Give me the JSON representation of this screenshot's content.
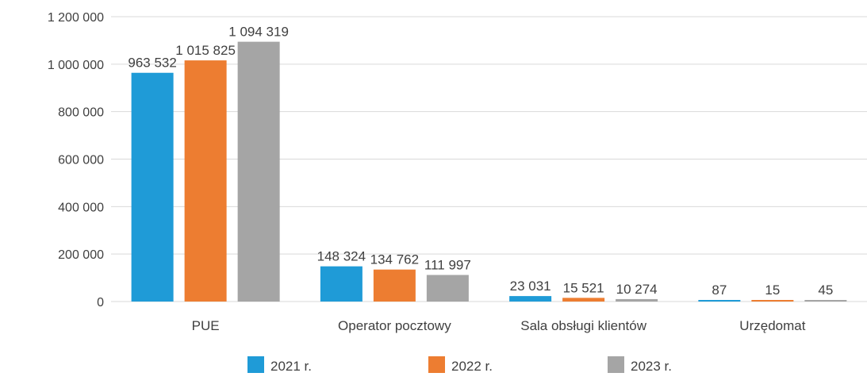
{
  "chart_data": {
    "type": "bar",
    "categories": [
      "PUE",
      "Operator pocztowy",
      "Sala obsługi klientów",
      "Urzędomat"
    ],
    "series": [
      {
        "name": "2021 r.",
        "color": "#1f9bd7",
        "values": [
          963532,
          148324,
          23031,
          87
        ],
        "labels": [
          "963 532",
          "148 324",
          "23 031",
          "87"
        ]
      },
      {
        "name": "2022 r.",
        "color": "#ed7d31",
        "values": [
          1015825,
          134762,
          15521,
          15
        ],
        "labels": [
          "1 015 825",
          "134 762",
          "15 521",
          "15"
        ]
      },
      {
        "name": "2023 r.",
        "color": "#a5a5a5",
        "values": [
          1094319,
          111997,
          10274,
          45
        ],
        "labels": [
          "1 094 319",
          "111 997",
          "10 274",
          "45"
        ]
      }
    ],
    "y_ticks": [
      "0",
      "200 000",
      "400 000",
      "600 000",
      "800 000",
      "1 000 000",
      "1 200 000"
    ],
    "ylim": [
      0,
      1200000
    ],
    "grid": true,
    "legend_position": "bottom",
    "title": "",
    "xlabel": "",
    "ylabel": ""
  }
}
